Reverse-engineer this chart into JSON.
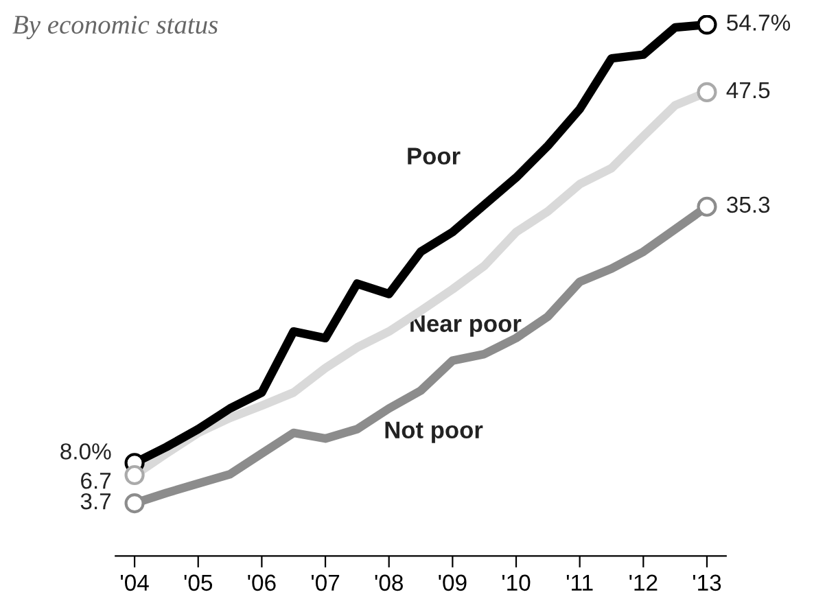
{
  "chart_data": {
    "type": "line",
    "title": "By economic status",
    "x": [
      2004,
      2004.5,
      2005,
      2005.5,
      2006,
      2006.5,
      2007,
      2007.5,
      2008,
      2008.5,
      2009,
      2009.5,
      2010,
      2010.5,
      2011,
      2011.5,
      2012,
      2012.5,
      2013
    ],
    "series": [
      {
        "name": "Poor",
        "color": "#000000",
        "values": [
          8.0,
          9.7,
          11.6,
          13.8,
          15.5,
          22.0,
          21.3,
          27.1,
          26.0,
          30.5,
          32.6,
          35.5,
          38.4,
          41.8,
          45.7,
          51.1,
          51.5,
          54.4,
          54.7
        ],
        "value_labels": [
          "8.0%",
          null,
          null,
          null,
          null,
          null,
          null,
          null,
          null,
          null,
          null,
          null,
          null,
          null,
          null,
          null,
          null,
          null,
          "54.7%"
        ]
      },
      {
        "name": "Near poor",
        "color": "#d9d9d9",
        "values": [
          6.7,
          9.0,
          11.2,
          12.8,
          14.1,
          15.5,
          18.1,
          20.3,
          22.0,
          24.2,
          26.5,
          29.0,
          32.6,
          34.8,
          37.7,
          39.4,
          42.8,
          46.1,
          47.5
        ],
        "value_labels": [
          "6.7",
          null,
          null,
          null,
          null,
          null,
          null,
          null,
          null,
          null,
          null,
          null,
          null,
          null,
          null,
          null,
          null,
          null,
          "47.5"
        ]
      },
      {
        "name": "Not poor",
        "color": "#8c8c8c",
        "values": [
          3.7,
          4.8,
          5.8,
          6.8,
          9.0,
          11.2,
          10.6,
          11.6,
          13.8,
          15.7,
          18.9,
          19.6,
          21.3,
          23.6,
          27.3,
          28.7,
          30.5,
          32.9,
          35.3
        ],
        "value_labels": [
          "3.7",
          null,
          null,
          null,
          null,
          null,
          null,
          null,
          null,
          null,
          null,
          null,
          null,
          null,
          null,
          null,
          null,
          null,
          "35.3"
        ]
      }
    ],
    "xlim": [
      2003.7,
      2013.3
    ],
    "xticks": [
      {
        "value": 2004,
        "label": "'04"
      },
      {
        "value": 2005,
        "label": "'05"
      },
      {
        "value": 2006,
        "label": "'06"
      },
      {
        "value": 2007,
        "label": "'07"
      },
      {
        "value": 2008,
        "label": "'08"
      },
      {
        "value": 2009,
        "label": "'09"
      },
      {
        "value": 2010,
        "label": "'10"
      },
      {
        "value": 2011,
        "label": "'11"
      },
      {
        "value": 2012,
        "label": "'12"
      },
      {
        "value": 2013,
        "label": "'13"
      }
    ],
    "tick_labels": "x",
    "grid": false,
    "legend": false,
    "line_style": "solid"
  }
}
